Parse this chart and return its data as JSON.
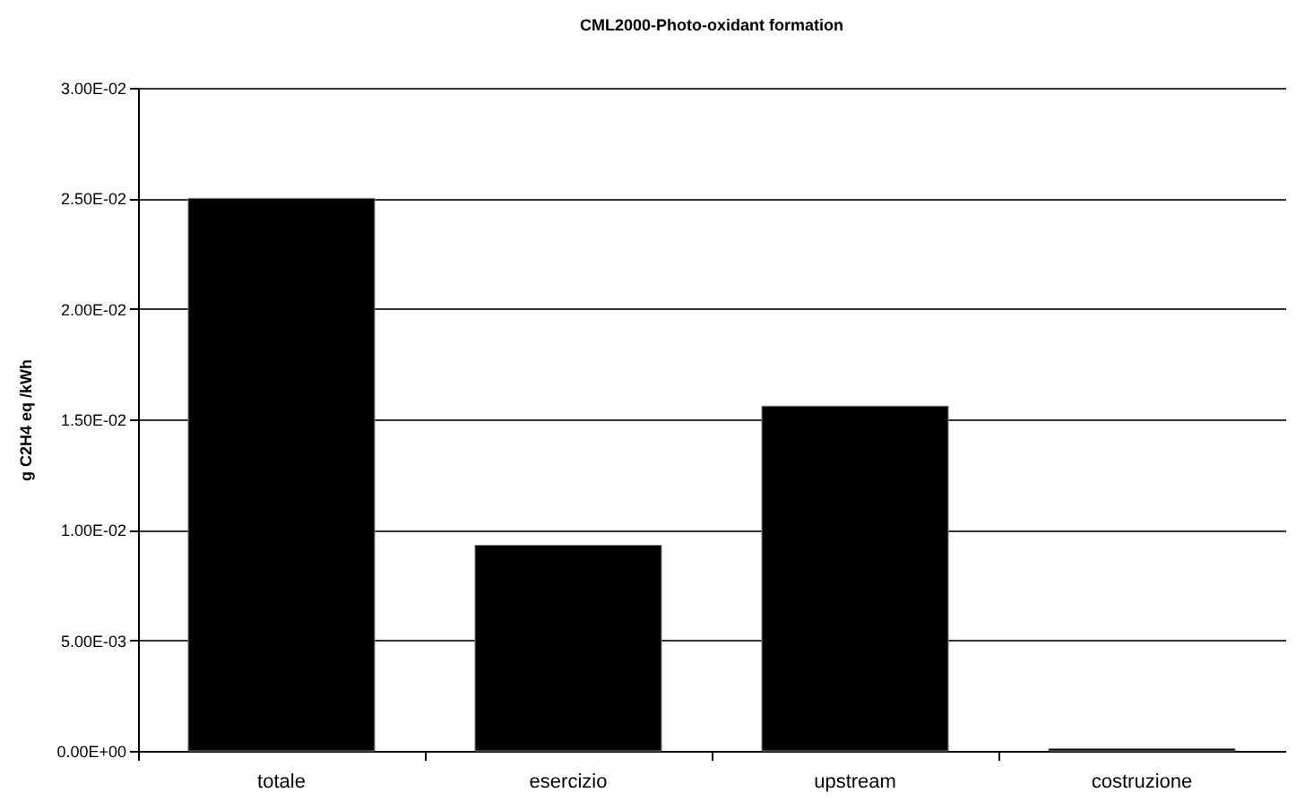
{
  "chart_data": {
    "type": "bar",
    "title": "CML2000-Photo-oxidant formation",
    "ylabel": "g C2H4 eq /kWh",
    "categories": [
      "totale",
      "esercizio",
      "upstream",
      "costruzione"
    ],
    "values": [
      0.025,
      0.0093,
      0.0156,
      0.0001
    ],
    "color": "#000000",
    "ylim": [
      0,
      0.03
    ],
    "yticks": [
      {
        "value": 0,
        "label": "0.00E+00"
      },
      {
        "value": 0.005,
        "label": "5.00E-03"
      },
      {
        "value": 0.01,
        "label": "1.00E-02"
      },
      {
        "value": 0.015,
        "label": "1.50E-02"
      },
      {
        "value": 0.02,
        "label": "2.00E-02"
      },
      {
        "value": 0.025,
        "label": "2.50E-02"
      },
      {
        "value": 0.03,
        "label": "3.00E-02"
      }
    ],
    "grid": "y"
  }
}
